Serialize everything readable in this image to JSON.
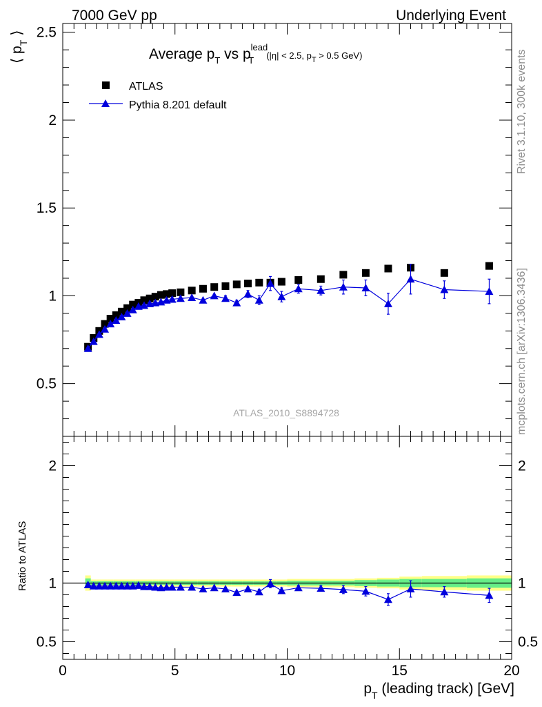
{
  "header": {
    "left": "7000 GeV pp",
    "right": "Underlying Event"
  },
  "side_labels": {
    "version": "Rivet 3.1.10,  300k events",
    "source": "mcplots.cern.ch [arXiv:1306.3436]"
  },
  "analysis_tag": "ATLAS_2010_S8894728",
  "colors": {
    "data": "#000000",
    "mc": "#0000dd",
    "band_inner": "#66ee88",
    "band_outer": "#ffff88"
  },
  "chart_data": [
    {
      "type": "scatter",
      "title": {
        "main": "Average p",
        "main_sub": "T",
        "vs": " vs p",
        "lead_sup": "lead",
        "lead_sub": "T",
        "cut_open": "(|η| < 2.5, p",
        "cut_sub": "T",
        "cut_close": " > 0.5 GeV)"
      },
      "ylabel": {
        "open": "⟨ p",
        "sub": "T",
        "close": "⟩"
      },
      "xlim": [
        0,
        20
      ],
      "ylim": [
        0.2,
        2.55
      ],
      "grid": false,
      "legend_position": "top-left",
      "x_ticks": [
        0,
        5,
        10,
        15,
        20
      ],
      "y_ticks": [
        0.5,
        1,
        1.5,
        2,
        2.5
      ],
      "y_tick_labels": [
        "0.5",
        "1",
        "1.5",
        "2",
        "2.5"
      ],
      "series": [
        {
          "name": "ATLAS",
          "marker": "square",
          "x": [
            1.125,
            1.375,
            1.625,
            1.875,
            2.125,
            2.375,
            2.625,
            2.875,
            3.125,
            3.375,
            3.625,
            3.875,
            4.125,
            4.375,
            4.625,
            4.875,
            5.25,
            5.75,
            6.25,
            6.75,
            7.25,
            7.75,
            8.25,
            8.75,
            9.25,
            9.75,
            10.5,
            11.5,
            12.5,
            13.5,
            14.5,
            15.5,
            17.0,
            19.0
          ],
          "y": [
            0.71,
            0.76,
            0.8,
            0.84,
            0.87,
            0.89,
            0.91,
            0.93,
            0.95,
            0.96,
            0.975,
            0.985,
            0.995,
            1.005,
            1.01,
            1.015,
            1.02,
            1.03,
            1.04,
            1.05,
            1.055,
            1.065,
            1.07,
            1.075,
            1.075,
            1.08,
            1.09,
            1.095,
            1.12,
            1.13,
            1.155,
            1.16,
            1.13,
            1.17
          ]
        },
        {
          "name": "Pythia 8.201 default",
          "marker": "triangle",
          "x": [
            1.125,
            1.375,
            1.625,
            1.875,
            2.125,
            2.375,
            2.625,
            2.875,
            3.125,
            3.375,
            3.625,
            3.875,
            4.125,
            4.375,
            4.625,
            4.875,
            5.25,
            5.75,
            6.25,
            6.75,
            7.25,
            7.75,
            8.25,
            8.75,
            9.25,
            9.75,
            10.5,
            11.5,
            12.5,
            13.5,
            14.5,
            15.5,
            17.0,
            19.0
          ],
          "y": [
            0.7,
            0.74,
            0.78,
            0.81,
            0.84,
            0.86,
            0.88,
            0.9,
            0.92,
            0.94,
            0.945,
            0.955,
            0.96,
            0.965,
            0.975,
            0.98,
            0.985,
            0.99,
            0.975,
            1.0,
            0.985,
            0.96,
            1.01,
            0.975,
            1.07,
            0.995,
            1.04,
            1.03,
            1.05,
            1.045,
            0.955,
            1.095,
            1.035,
            1.025
          ],
          "yerr": [
            0.01,
            0.01,
            0.01,
            0.01,
            0.01,
            0.01,
            0.01,
            0.01,
            0.01,
            0.01,
            0.01,
            0.01,
            0.01,
            0.01,
            0.01,
            0.01,
            0.01,
            0.01,
            0.01,
            0.01,
            0.015,
            0.015,
            0.02,
            0.025,
            0.04,
            0.03,
            0.025,
            0.025,
            0.04,
            0.045,
            0.06,
            0.085,
            0.05,
            0.07
          ]
        }
      ]
    },
    {
      "type": "scatter",
      "ylabel": "Ratio to ATLAS",
      "xlabel": {
        "open": "p",
        "sub": "T",
        "close": " (leading track) [GeV]"
      },
      "xlim": [
        0,
        20
      ],
      "ylim": [
        0.35,
        2.25
      ],
      "grid": false,
      "x_ticks": [
        0,
        5,
        10,
        15,
        20
      ],
      "x_tick_labels": [
        "0",
        "5",
        "10",
        "15",
        "20"
      ],
      "y_ticks": [
        0.5,
        1,
        2
      ],
      "y_tick_labels": [
        "0.5",
        "1",
        "2"
      ],
      "reference_line": 1,
      "band_edges": [
        1.0,
        1.25,
        1.5,
        1.75,
        2.0,
        2.25,
        2.5,
        2.75,
        3.0,
        3.25,
        3.5,
        3.75,
        4.0,
        4.25,
        4.5,
        4.75,
        5.0,
        5.5,
        6.0,
        6.5,
        7.0,
        7.5,
        8.0,
        8.5,
        9.0,
        9.5,
        10.0,
        11.0,
        12.0,
        13.0,
        14.0,
        15.0,
        16.0,
        18.0,
        20.0
      ],
      "band_inner_halfwidth": [
        0.04,
        0.015,
        0.015,
        0.015,
        0.015,
        0.015,
        0.015,
        0.015,
        0.015,
        0.015,
        0.015,
        0.015,
        0.015,
        0.015,
        0.015,
        0.015,
        0.015,
        0.015,
        0.015,
        0.015,
        0.015,
        0.015,
        0.015,
        0.015,
        0.015,
        0.015,
        0.02,
        0.02,
        0.02,
        0.025,
        0.03,
        0.035,
        0.035,
        0.04
      ],
      "band_outer_halfwidth": [
        0.065,
        0.03,
        0.03,
        0.03,
        0.03,
        0.03,
        0.03,
        0.03,
        0.03,
        0.03,
        0.03,
        0.03,
        0.03,
        0.03,
        0.03,
        0.03,
        0.03,
        0.03,
        0.03,
        0.03,
        0.03,
        0.03,
        0.03,
        0.03,
        0.03,
        0.03,
        0.035,
        0.035,
        0.035,
        0.04,
        0.045,
        0.055,
        0.06,
        0.065
      ],
      "series": [
        {
          "name": "Pythia 8.201 default",
          "marker": "triangle",
          "x": [
            1.125,
            1.375,
            1.625,
            1.875,
            2.125,
            2.375,
            2.625,
            2.875,
            3.125,
            3.375,
            3.625,
            3.875,
            4.125,
            4.375,
            4.625,
            4.875,
            5.25,
            5.75,
            6.25,
            6.75,
            7.25,
            7.75,
            8.25,
            8.75,
            9.25,
            9.75,
            10.5,
            11.5,
            12.5,
            13.5,
            14.5,
            15.5,
            17.0,
            19.0
          ],
          "y": [
            0.985,
            0.975,
            0.975,
            0.975,
            0.975,
            0.975,
            0.975,
            0.975,
            0.975,
            0.98,
            0.97,
            0.97,
            0.965,
            0.96,
            0.965,
            0.965,
            0.965,
            0.965,
            0.95,
            0.96,
            0.95,
            0.92,
            0.95,
            0.925,
            0.995,
            0.935,
            0.96,
            0.955,
            0.945,
            0.93,
            0.86,
            0.95,
            0.925,
            0.895
          ],
          "yerr": [
            0.01,
            0.01,
            0.01,
            0.01,
            0.01,
            0.01,
            0.01,
            0.01,
            0.01,
            0.01,
            0.01,
            0.01,
            0.01,
            0.01,
            0.01,
            0.01,
            0.01,
            0.01,
            0.01,
            0.01,
            0.012,
            0.012,
            0.015,
            0.02,
            0.035,
            0.025,
            0.02,
            0.022,
            0.035,
            0.04,
            0.05,
            0.07,
            0.045,
            0.06
          ]
        }
      ]
    }
  ]
}
